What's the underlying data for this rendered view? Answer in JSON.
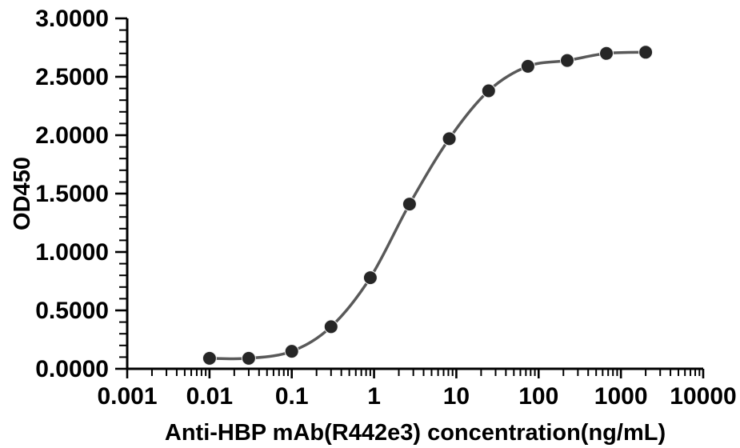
{
  "chart_data": {
    "type": "line",
    "title": "",
    "xlabel": "Anti-HBP mAb(R442e3) concentration(ng/mL)",
    "ylabel": "OD450",
    "x_scale": "log10",
    "xlim": [
      0.001,
      10000
    ],
    "ylim": [
      0.0,
      3.0
    ],
    "grid": false,
    "legend": "none",
    "x_tick_labels": [
      "0.001",
      "0.01",
      "0.1",
      "1",
      "10",
      "100",
      "1000",
      "10000"
    ],
    "y_tick_labels": [
      "0.0000",
      "0.5000",
      "1.0000",
      "1.5000",
      "2.0000",
      "2.5000",
      "3.0000"
    ],
    "y_major_step": 0.5,
    "y_minor_step": 0.1,
    "series": [
      {
        "name": "OD450",
        "x": [
          0.01,
          0.03,
          0.1,
          0.3,
          0.9,
          2.7,
          8.2,
          24.7,
          74.1,
          222.2,
          666.7,
          2000
        ],
        "y": [
          0.09,
          0.09,
          0.15,
          0.36,
          0.78,
          1.41,
          1.97,
          2.38,
          2.59,
          2.64,
          2.7,
          2.71
        ]
      }
    ]
  },
  "style": {
    "background_color": "#ffffff",
    "axis_color": "#000000",
    "text_color": "#000000",
    "line_color": "#595959",
    "marker_color": "#262626",
    "marker_rim_color": "#f2f2f2"
  }
}
